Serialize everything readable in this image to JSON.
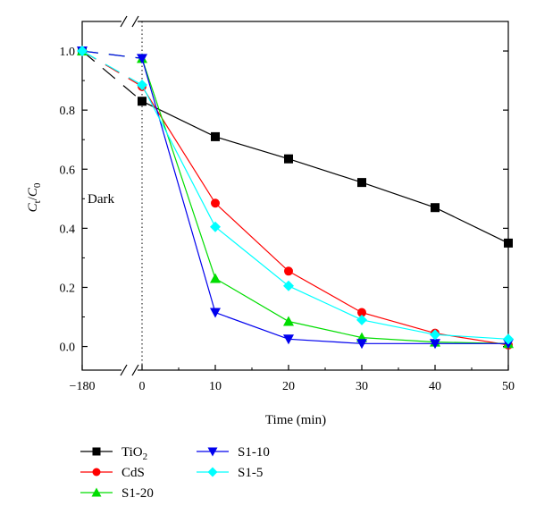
{
  "chart_data": {
    "type": "line",
    "xlabel": "Time (min)",
    "ylabel": {
      "base1": "C",
      "sub1": "t",
      "slash": "/",
      "base2": "C",
      "sub2": "0"
    },
    "x_ticks": [
      "−180",
      "0",
      "10",
      "20",
      "30",
      "40",
      "50"
    ],
    "y_ticks": [
      "0.0",
      "0.2",
      "0.4",
      "0.6",
      "0.8",
      "1.0"
    ],
    "xlim": [
      -5,
      50
    ],
    "ylim": [
      -0.08,
      1.1
    ],
    "x_axis_break": {
      "between": [
        -180,
        0
      ]
    },
    "dark_line_x": 0,
    "annotation": "Dark",
    "legend_position": "bottom",
    "grid": false,
    "series": [
      {
        "name": "TiO2",
        "label_base": "TiO",
        "label_sub": "2",
        "color": "#000000",
        "marker": "square",
        "x": [
          -180,
          0,
          10,
          20,
          30,
          40,
          50
        ],
        "values": [
          1.0,
          0.83,
          0.71,
          0.635,
          0.555,
          0.47,
          0.35
        ]
      },
      {
        "name": "CdS",
        "label_base": "CdS",
        "label_sub": "",
        "color": "#ff0000",
        "marker": "circle",
        "x": [
          -180,
          0,
          10,
          20,
          30,
          40,
          50
        ],
        "values": [
          1.0,
          0.88,
          0.485,
          0.255,
          0.115,
          0.045,
          0.005
        ]
      },
      {
        "name": "S1-20",
        "label_base": "S1-20",
        "label_sub": "",
        "color": "#00dd00",
        "marker": "triangle-up",
        "x": [
          -180,
          0,
          10,
          20,
          30,
          40,
          50
        ],
        "values": [
          1.0,
          0.975,
          0.23,
          0.085,
          0.03,
          0.015,
          0.01
        ]
      },
      {
        "name": "S1-10",
        "label_base": "S1-10",
        "label_sub": "",
        "color": "#0000ee",
        "marker": "triangle-down",
        "x": [
          -180,
          0,
          10,
          20,
          30,
          40,
          50
        ],
        "values": [
          1.0,
          0.975,
          0.115,
          0.025,
          0.01,
          0.01,
          0.01
        ]
      },
      {
        "name": "S1-5",
        "label_base": "S1-5",
        "label_sub": "",
        "color": "#00ffff",
        "marker": "diamond",
        "x": [
          -180,
          0,
          10,
          20,
          30,
          40,
          50
        ],
        "values": [
          1.0,
          0.885,
          0.405,
          0.205,
          0.09,
          0.04,
          0.025
        ]
      }
    ]
  }
}
